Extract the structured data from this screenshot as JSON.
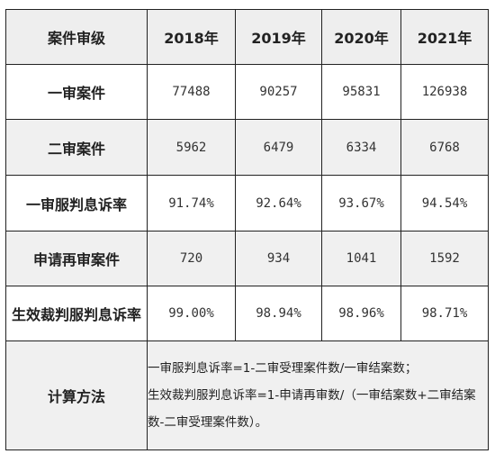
{
  "table": {
    "headers": [
      "案件审级",
      "2018年",
      "2019年",
      "2020年",
      "2021年"
    ],
    "rows": [
      {
        "label": "一审案件",
        "values": [
          "77488",
          "90257",
          "95831",
          "126938"
        ]
      },
      {
        "label": "二审案件",
        "values": [
          "5962",
          "6479",
          "6334",
          "6768"
        ]
      },
      {
        "label": "一审服判息诉率",
        "values": [
          "91.74%",
          "92.64%",
          "93.67%",
          "94.54%"
        ]
      },
      {
        "label": "申请再审案件",
        "values": [
          "720",
          "934",
          "1041",
          "1592"
        ]
      },
      {
        "label": "生效裁判服判息诉率",
        "values": [
          "99.00%",
          "98.94%",
          "98.96%",
          "98.71%"
        ]
      }
    ],
    "method": {
      "label": "计算方法",
      "lines": [
        "一审服判息诉率=1-二审受理案件数/一审结案数；",
        "生效裁判服判息诉率=1-申请再审数/（一审结案数+二审结案",
        "数-二审受理案件数）。"
      ]
    }
  }
}
